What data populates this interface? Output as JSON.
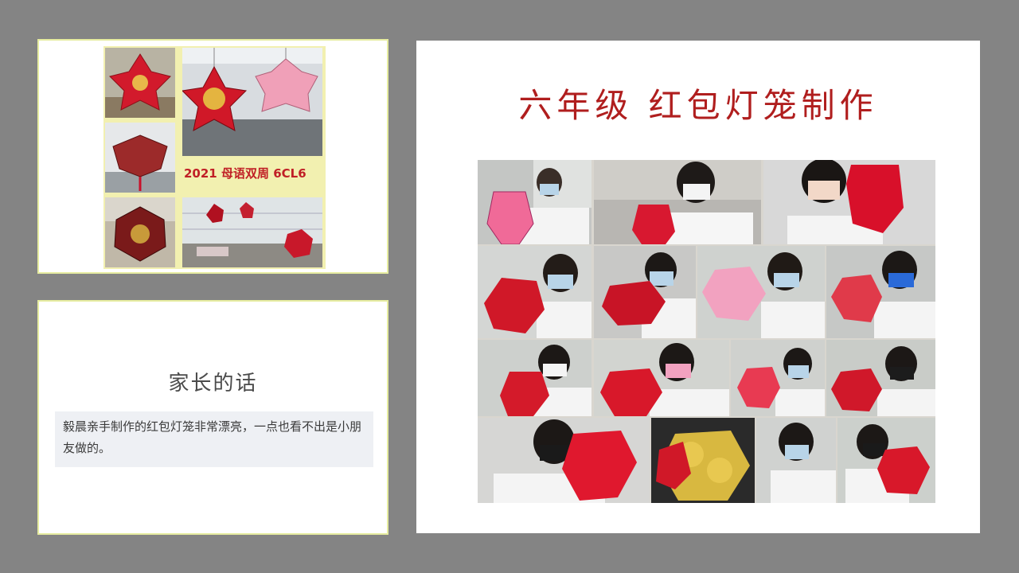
{
  "slide": {
    "background": "#848484",
    "panel_border": "#e6eca0"
  },
  "collage": {
    "caption": "2021 母语双周 6CL6",
    "caption_color": "#c02026",
    "background": "#f2f0b0"
  },
  "parent_panel": {
    "title": "家长的话",
    "quote": "毅晨亲手制作的红包灯笼非常漂亮，一点也看不出是小朋友做的。"
  },
  "main_panel": {
    "title": "六年级  红包灯笼制作",
    "title_color": "#b01e1e"
  },
  "photo_grid": {
    "rows": 4,
    "uniform": "white shirt, navy collar",
    "lantern_colors": [
      "#d8182a",
      "#e8405a",
      "#f2a0b8",
      "#c81020"
    ]
  }
}
